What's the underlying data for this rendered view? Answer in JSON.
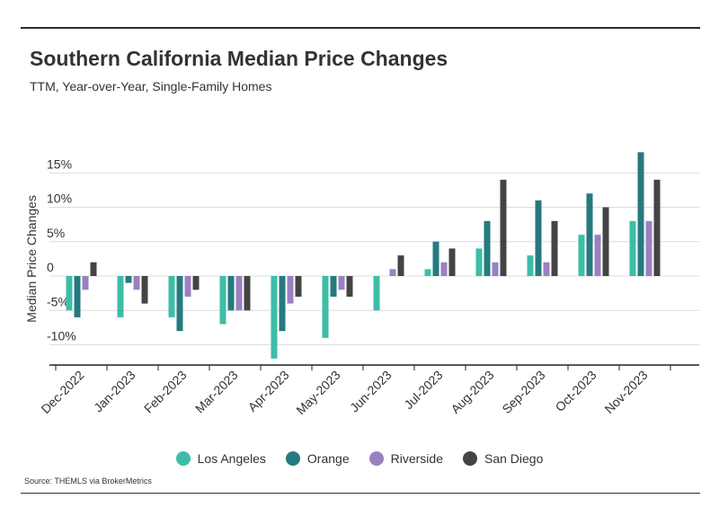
{
  "title": "Southern California Median Price Changes",
  "subtitle": "TTM, Year-over-Year, Single-Family Homes",
  "source": "Source:  THEMLS via BrokerMetrics",
  "chart_data": {
    "type": "bar",
    "title": "Southern California Median Price Changes",
    "ylabel": "Median Price Changes",
    "xlabel": "",
    "ylim": [
      -13,
      18
    ],
    "yticks": [
      -10,
      -5,
      0,
      5,
      10,
      15
    ],
    "ytick_labels": [
      "-10%",
      "-5%",
      "0",
      "5%",
      "10%",
      "15%"
    ],
    "grid": true,
    "legend": "bottom",
    "categories": [
      "Dec-2022",
      "Jan-2023",
      "Feb-2023",
      "Mar-2023",
      "Apr-2023",
      "May-2023",
      "Jun-2023",
      "Jul-2023",
      "Aug-2023",
      "Sep-2023",
      "Oct-2023",
      "Nov-2023"
    ],
    "series": [
      {
        "name": "Los Angeles",
        "color": "#3dbda7",
        "values": [
          -5,
          -6,
          -6,
          -7,
          -12,
          -9,
          -5,
          1,
          4,
          3,
          6,
          8
        ]
      },
      {
        "name": "Orange",
        "color": "#267a7f",
        "values": [
          -6,
          -1,
          -8,
          -5,
          -8,
          -3,
          0,
          5,
          8,
          11,
          12,
          18
        ]
      },
      {
        "name": "Riverside",
        "color": "#9b80c0",
        "values": [
          -2,
          -2,
          -3,
          -5,
          -4,
          -2,
          1,
          2,
          2,
          2,
          6,
          8
        ]
      },
      {
        "name": "San Diego",
        "color": "#444444",
        "values": [
          2,
          -4,
          -2,
          -5,
          -3,
          -3,
          3,
          4,
          14,
          8,
          10,
          14
        ]
      }
    ]
  }
}
